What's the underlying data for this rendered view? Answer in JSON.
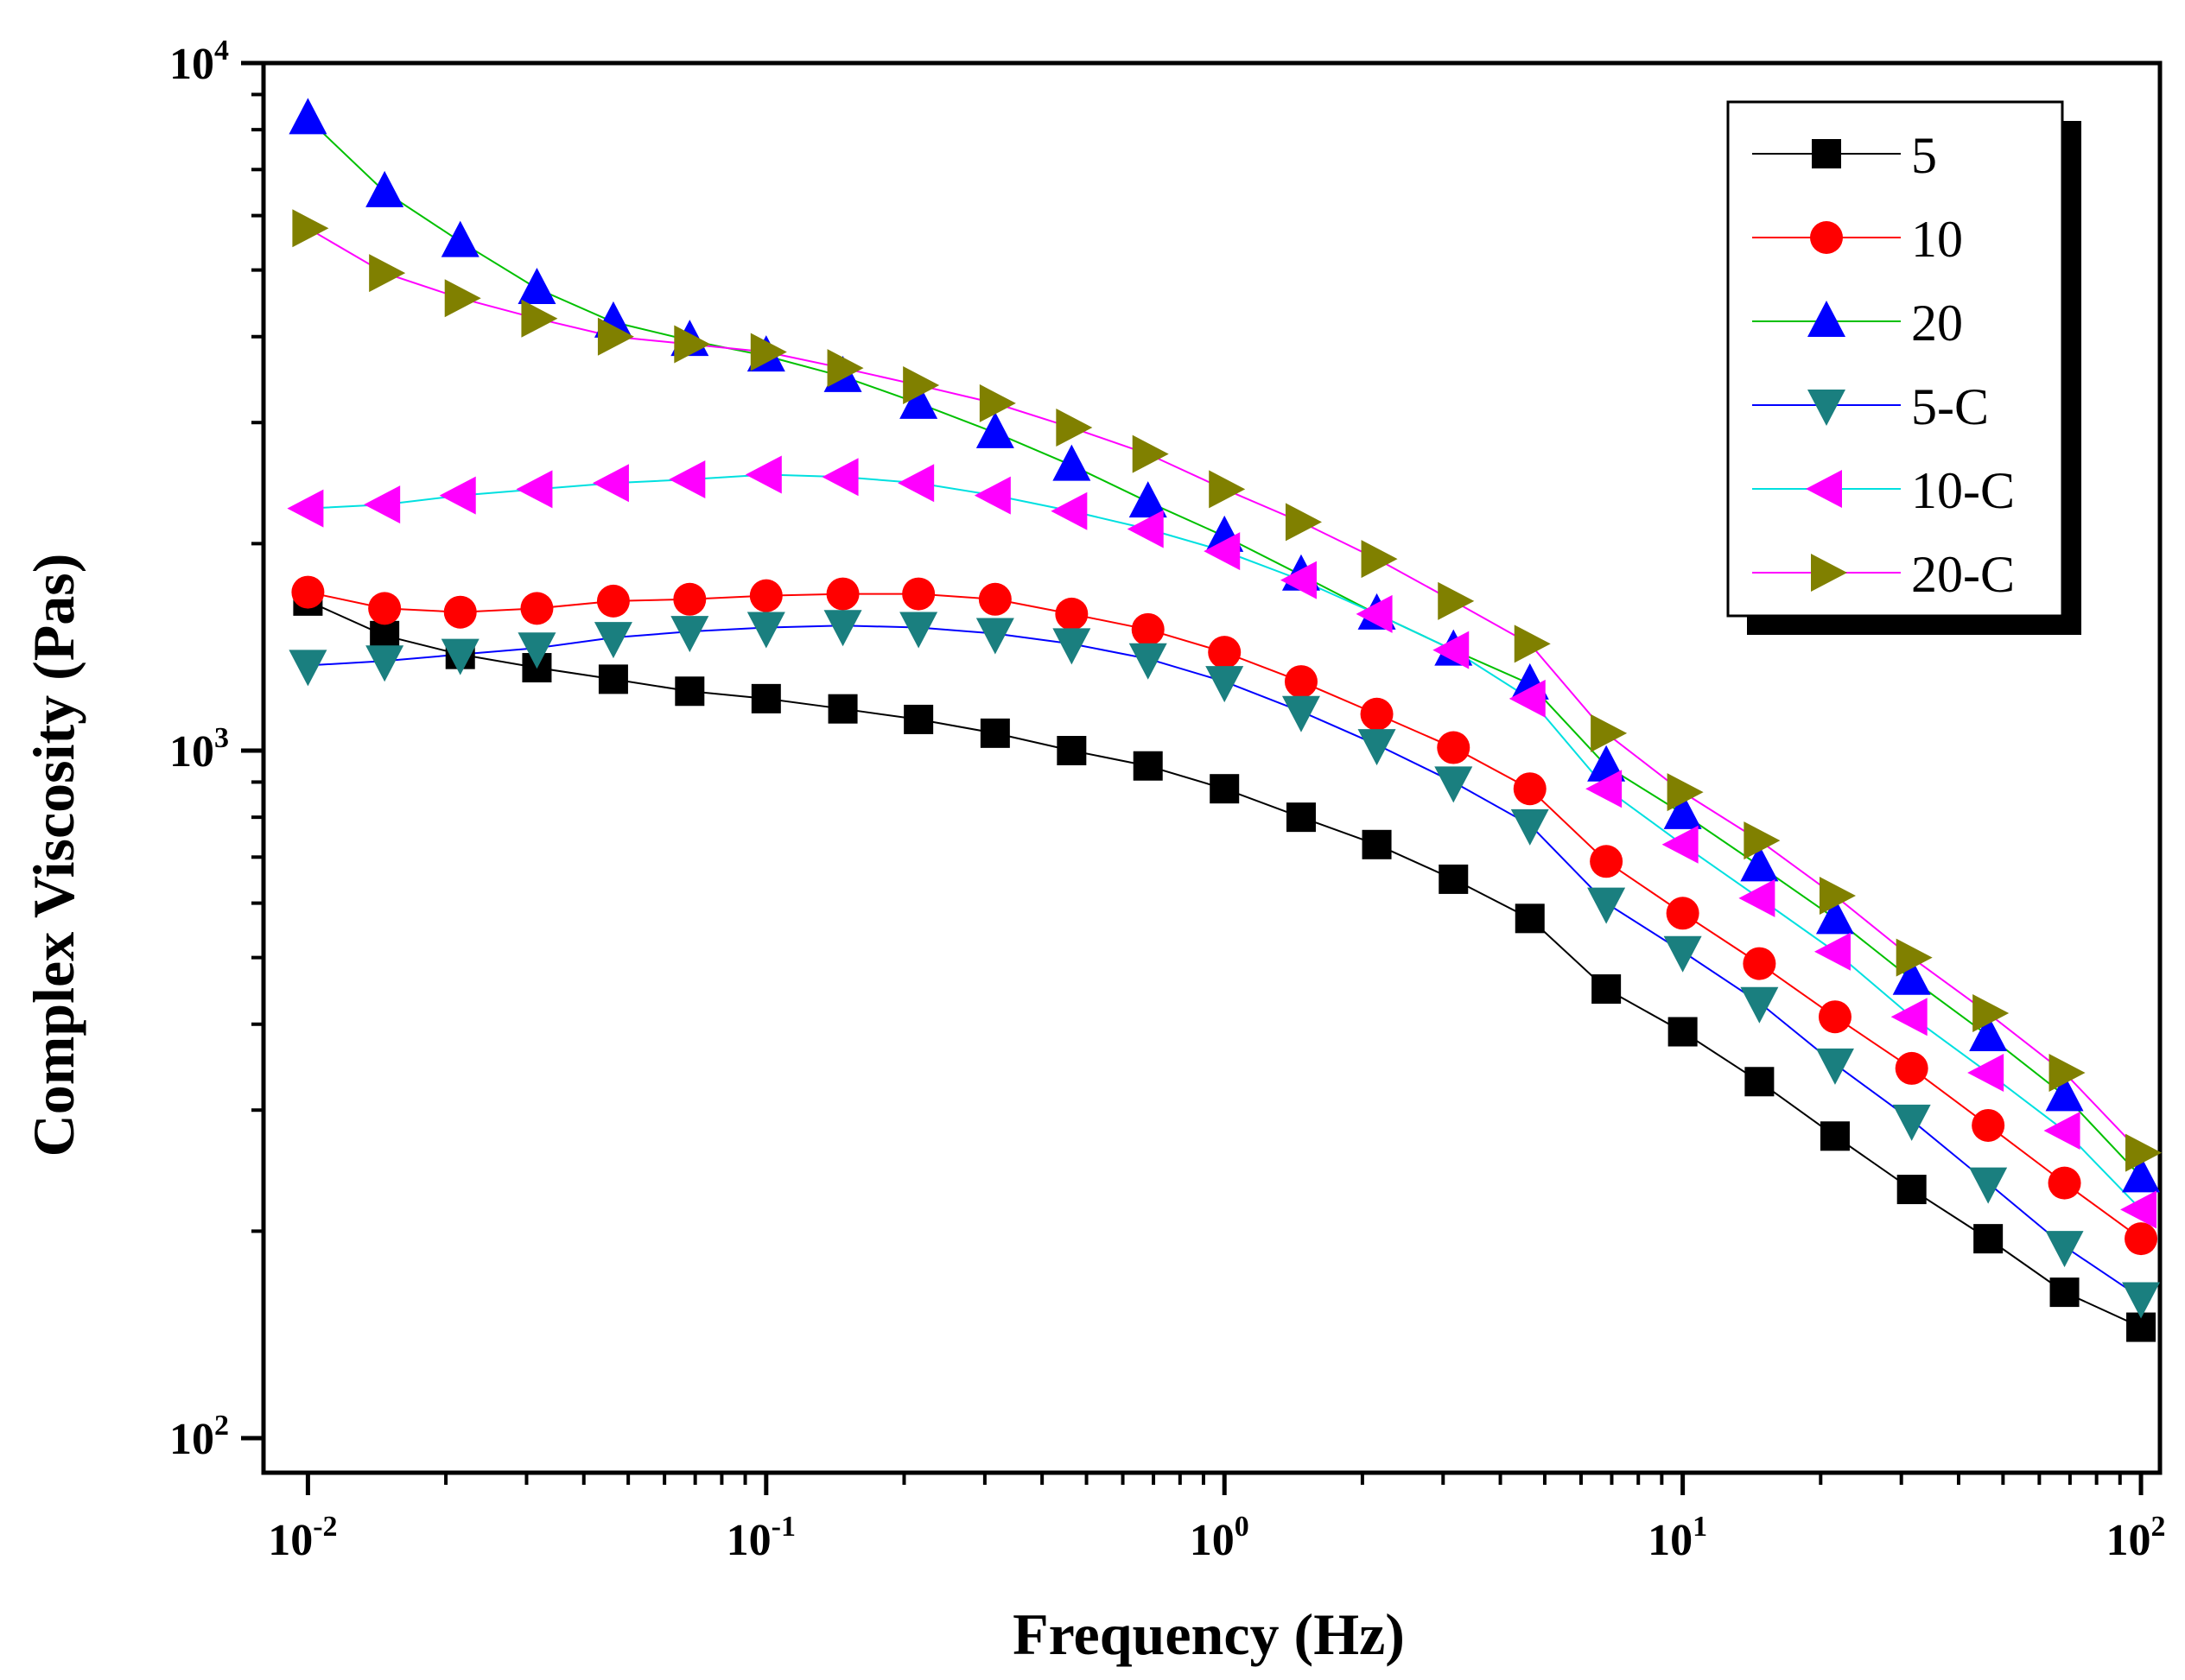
{
  "chart_data": {
    "type": "scatter",
    "title": "",
    "xlabel": "Frequency (Hz)",
    "ylabel": "Complex Viscosity (Pas)",
    "xscale": "log",
    "yscale": "log",
    "xlim": [
      0.008,
      110
    ],
    "ylim": [
      100,
      10000
    ],
    "xticks": [
      {
        "base": "10",
        "exp": "-2"
      },
      {
        "base": "10",
        "exp": "-1"
      },
      {
        "base": "10",
        "exp": "0"
      },
      {
        "base": "10",
        "exp": "1"
      },
      {
        "base": "10",
        "exp": "2"
      }
    ],
    "yticks": [
      {
        "base": "10",
        "exp": "2"
      },
      {
        "base": "10",
        "exp": "3"
      },
      {
        "base": "10",
        "exp": "4"
      }
    ],
    "legend_position": "top-right",
    "x": [
      0.01,
      0.0147,
      0.0215,
      0.0316,
      0.0464,
      0.0681,
      0.1,
      0.147,
      0.215,
      0.316,
      0.464,
      0.681,
      1.0,
      1.47,
      2.15,
      3.16,
      4.64,
      6.81,
      10.0,
      14.7,
      21.5,
      31.6,
      46.4,
      68.1,
      100
    ],
    "series": [
      {
        "name": "5",
        "marker": "square",
        "color": "#000000",
        "line_color": "#000000",
        "values": [
          1650,
          1470,
          1380,
          1320,
          1270,
          1220,
          1190,
          1150,
          1110,
          1060,
          1000,
          950,
          880,
          800,
          730,
          650,
          570,
          450,
          390,
          330,
          275,
          230,
          195,
          163,
          145
        ]
      },
      {
        "name": "10",
        "marker": "circle",
        "color": "#ff0000",
        "line_color": "#ff0000",
        "values": [
          1700,
          1610,
          1590,
          1610,
          1650,
          1660,
          1680,
          1690,
          1690,
          1660,
          1580,
          1500,
          1390,
          1260,
          1130,
          1010,
          880,
          690,
          580,
          490,
          410,
          345,
          285,
          235,
          195
        ]
      },
      {
        "name": "20",
        "marker": "triangle-up",
        "color": "#0000ff",
        "line_color": "#00c000",
        "values": [
          8300,
          6500,
          5500,
          4700,
          4200,
          3950,
          3750,
          3500,
          3200,
          2900,
          2600,
          2300,
          2050,
          1800,
          1580,
          1400,
          1250,
          950,
          810,
          680,
          570,
          465,
          385,
          315,
          240
        ]
      },
      {
        "name": "5-C",
        "marker": "triangle-down",
        "color": "#1a7f7f",
        "line_color": "#0000ff",
        "values": [
          1330,
          1350,
          1380,
          1410,
          1460,
          1490,
          1510,
          1520,
          1510,
          1480,
          1430,
          1360,
          1260,
          1140,
          1020,
          900,
          780,
          600,
          510,
          430,
          350,
          290,
          235,
          190,
          160
        ]
      },
      {
        "name": "10-C",
        "marker": "triangle-left",
        "color": "#ff00ff",
        "line_color": "#00e0e0",
        "values": [
          2250,
          2280,
          2350,
          2400,
          2450,
          2480,
          2520,
          2500,
          2450,
          2350,
          2230,
          2100,
          1950,
          1770,
          1580,
          1400,
          1190,
          880,
          730,
          610,
          510,
          410,
          340,
          280,
          215
        ]
      },
      {
        "name": "20-C",
        "marker": "triangle-right",
        "color": "#808000",
        "line_color": "#ff00ff",
        "values": [
          5750,
          4950,
          4550,
          4250,
          4000,
          3900,
          3800,
          3600,
          3400,
          3200,
          2950,
          2700,
          2400,
          2150,
          1900,
          1650,
          1430,
          1060,
          870,
          740,
          615,
          500,
          415,
          340,
          260
        ]
      }
    ]
  }
}
